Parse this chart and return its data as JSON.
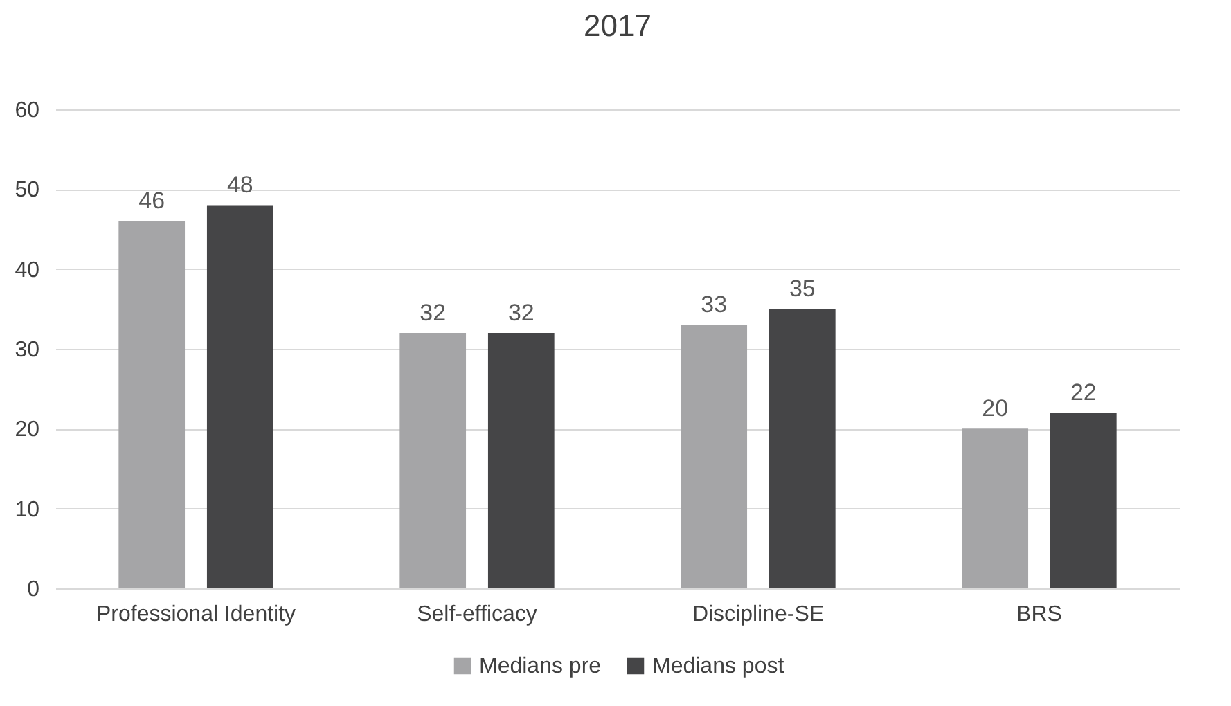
{
  "chart_data": {
    "type": "bar",
    "title": "2017",
    "categories": [
      "Professional Identity",
      "Self-efficacy",
      "Discipline-SE",
      "BRS"
    ],
    "series": [
      {
        "name": "Medians pre",
        "color": "#a5a5a7",
        "values": [
          46,
          32,
          33,
          20
        ]
      },
      {
        "name": "Medians post",
        "color": "#454547",
        "values": [
          48,
          32,
          35,
          22
        ]
      }
    ],
    "ylim": [
      0,
      60
    ],
    "yticks": [
      0,
      10,
      20,
      30,
      40,
      50,
      60
    ],
    "grid": "y",
    "legend": "bottom",
    "data_labels": true
  }
}
